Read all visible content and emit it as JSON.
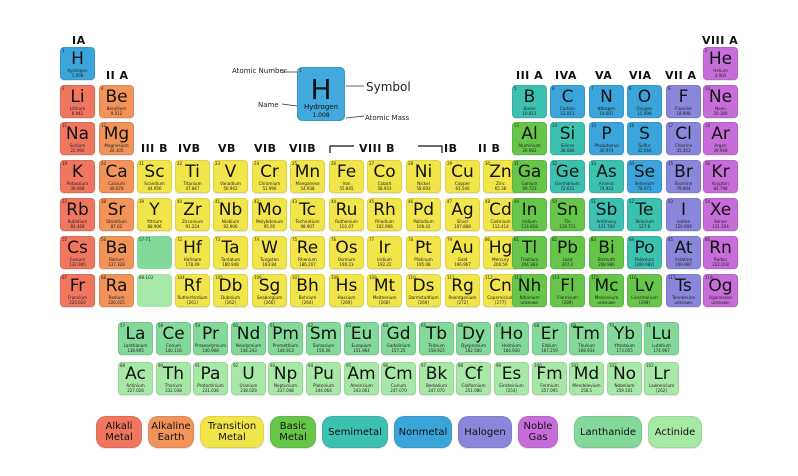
{
  "colors": {
    "alkali": "#f0765f",
    "alkaline": "#f2935a",
    "transition": "#f2e54a",
    "basic": "#66c64a",
    "semimetal": "#3cc0b0",
    "nonmetal": "#3ba4da",
    "halogen": "#8a86da",
    "noble": "#c76dd9",
    "lanthanide": "#83d99a",
    "actinide": "#a8e8a6",
    "hydrogen": "#3ba4da"
  },
  "group_labels": [
    "IA",
    "II A",
    "III B",
    "IVB",
    "VB",
    "VIB",
    "VIIB",
    "VIII B",
    "IB",
    "II B",
    "III A",
    "IVA",
    "VA",
    "VIA",
    "VII A",
    "VIII A"
  ],
  "key": {
    "atomic_number_label": "Atomic Number",
    "name_label": "Name",
    "symbol_label": "Symbol",
    "atomic_mass_label": "Atomic Mass",
    "symbol": "H",
    "name": "Hydrogen",
    "mass": "1.008",
    "number": "1"
  },
  "main_elements": [
    {
      "n": "1",
      "s": "H",
      "name": "Hydrogen",
      "m": "1.008",
      "r": 0,
      "c": 0,
      "t": "hydrogen"
    },
    {
      "n": "2",
      "s": "He",
      "name": "Helium",
      "m": "4.003",
      "r": 0,
      "c": 17,
      "t": "noble"
    },
    {
      "n": "3",
      "s": "Li",
      "name": "Lithium",
      "m": "6.941",
      "r": 1,
      "c": 0,
      "t": "alkali"
    },
    {
      "n": "4",
      "s": "Be",
      "name": "Beryllium",
      "m": "9.012",
      "r": 1,
      "c": 1,
      "t": "alkaline"
    },
    {
      "n": "5",
      "s": "B",
      "name": "Boron",
      "m": "10.811",
      "r": 1,
      "c": 12,
      "t": "semimetal"
    },
    {
      "n": "6",
      "s": "C",
      "name": "Carbon",
      "m": "12.011",
      "r": 1,
      "c": 13,
      "t": "nonmetal"
    },
    {
      "n": "7",
      "s": "N",
      "name": "Nitrogen",
      "m": "14.007",
      "r": 1,
      "c": 14,
      "t": "nonmetal"
    },
    {
      "n": "8",
      "s": "O",
      "name": "Oxygen",
      "m": "15.999",
      "r": 1,
      "c": 15,
      "t": "nonmetal"
    },
    {
      "n": "9",
      "s": "F",
      "name": "Fluorine",
      "m": "18.998",
      "r": 1,
      "c": 16,
      "t": "halogen"
    },
    {
      "n": "10",
      "s": "Ne",
      "name": "Neon",
      "m": "20.180",
      "r": 1,
      "c": 17,
      "t": "noble"
    },
    {
      "n": "11",
      "s": "Na",
      "name": "Sodium",
      "m": "22.990",
      "r": 2,
      "c": 0,
      "t": "alkali"
    },
    {
      "n": "12",
      "s": "Mg",
      "name": "Magnesium",
      "m": "24.305",
      "r": 2,
      "c": 1,
      "t": "alkaline"
    },
    {
      "n": "13",
      "s": "Al",
      "name": "Aluminium",
      "m": "26.982",
      "r": 2,
      "c": 12,
      "t": "basic"
    },
    {
      "n": "14",
      "s": "Si",
      "name": "Silicon",
      "m": "28.086",
      "r": 2,
      "c": 13,
      "t": "semimetal"
    },
    {
      "n": "15",
      "s": "P",
      "name": "Phosphorus",
      "m": "30.974",
      "r": 2,
      "c": 14,
      "t": "nonmetal"
    },
    {
      "n": "16",
      "s": "S",
      "name": "Sulfur",
      "m": "32.066",
      "r": 2,
      "c": 15,
      "t": "nonmetal"
    },
    {
      "n": "17",
      "s": "Cl",
      "name": "Chlorine",
      "m": "35.453",
      "r": 2,
      "c": 16,
      "t": "halogen"
    },
    {
      "n": "18",
      "s": "Ar",
      "name": "Argon",
      "m": "39.948",
      "r": 2,
      "c": 17,
      "t": "noble"
    },
    {
      "n": "19",
      "s": "K",
      "name": "Potassium",
      "m": "39.098",
      "r": 3,
      "c": 0,
      "t": "alkali"
    },
    {
      "n": "20",
      "s": "Ca",
      "name": "Calcium",
      "m": "40.078",
      "r": 3,
      "c": 1,
      "t": "alkaline"
    },
    {
      "n": "21",
      "s": "Sc",
      "name": "Scandium",
      "m": "44.956",
      "r": 3,
      "c": 2,
      "t": "transition"
    },
    {
      "n": "22",
      "s": "Ti",
      "name": "Titanium",
      "m": "47.867",
      "r": 3,
      "c": 3,
      "t": "transition"
    },
    {
      "n": "23",
      "s": "V",
      "name": "Vanadium",
      "m": "50.942",
      "r": 3,
      "c": 4,
      "t": "transition"
    },
    {
      "n": "24",
      "s": "Cr",
      "name": "Chromium",
      "m": "51.996",
      "r": 3,
      "c": 5,
      "t": "transition"
    },
    {
      "n": "25",
      "s": "Mn",
      "name": "Manganese",
      "m": "54.938",
      "r": 3,
      "c": 6,
      "t": "transition"
    },
    {
      "n": "26",
      "s": "Fe",
      "name": "Iron",
      "m": "55.845",
      "r": 3,
      "c": 7,
      "t": "transition"
    },
    {
      "n": "27",
      "s": "Co",
      "name": "Cobalt",
      "m": "58.933",
      "r": 3,
      "c": 8,
      "t": "transition"
    },
    {
      "n": "28",
      "s": "Ni",
      "name": "Nickel",
      "m": "58.693",
      "r": 3,
      "c": 9,
      "t": "transition"
    },
    {
      "n": "29",
      "s": "Cu",
      "name": "Copper",
      "m": "63.546",
      "r": 3,
      "c": 10,
      "t": "transition"
    },
    {
      "n": "30",
      "s": "Zn",
      "name": "Zinc",
      "m": "65.38",
      "r": 3,
      "c": 11,
      "t": "transition"
    },
    {
      "n": "31",
      "s": "Ga",
      "name": "Gallium",
      "m": "69.723",
      "r": 3,
      "c": 12,
      "t": "basic"
    },
    {
      "n": "32",
      "s": "Ge",
      "name": "Germanium",
      "m": "72.631",
      "r": 3,
      "c": 13,
      "t": "semimetal"
    },
    {
      "n": "33",
      "s": "As",
      "name": "Arsenic",
      "m": "74.922",
      "r": 3,
      "c": 14,
      "t": "semimetal"
    },
    {
      "n": "34",
      "s": "Se",
      "name": "Selenium",
      "m": "78.971",
      "r": 3,
      "c": 15,
      "t": "nonmetal"
    },
    {
      "n": "35",
      "s": "Br",
      "name": "Bromine",
      "m": "79.904",
      "r": 3,
      "c": 16,
      "t": "halogen"
    },
    {
      "n": "36",
      "s": "Kr",
      "name": "Krypton",
      "m": "84.798",
      "r": 3,
      "c": 17,
      "t": "noble"
    },
    {
      "n": "37",
      "s": "Rb",
      "name": "Rubidium",
      "m": "84.468",
      "r": 4,
      "c": 0,
      "t": "alkali"
    },
    {
      "n": "38",
      "s": "Sr",
      "name": "Strontium",
      "m": "87.62",
      "r": 4,
      "c": 1,
      "t": "alkaline"
    },
    {
      "n": "39",
      "s": "Y",
      "name": "Yttrium",
      "m": "88.906",
      "r": 4,
      "c": 2,
      "t": "transition"
    },
    {
      "n": "40",
      "s": "Zr",
      "name": "Zirconium",
      "m": "91.224",
      "r": 4,
      "c": 3,
      "t": "transition"
    },
    {
      "n": "41",
      "s": "Nb",
      "name": "Niobium",
      "m": "92.906",
      "r": 4,
      "c": 4,
      "t": "transition"
    },
    {
      "n": "42",
      "s": "Mo",
      "name": "Molybdenum",
      "m": "95.95",
      "r": 4,
      "c": 5,
      "t": "transition"
    },
    {
      "n": "43",
      "s": "Tc",
      "name": "Technetium",
      "m": "98.907",
      "r": 4,
      "c": 6,
      "t": "transition"
    },
    {
      "n": "44",
      "s": "Ru",
      "name": "Ruthenium",
      "m": "101.07",
      "r": 4,
      "c": 7,
      "t": "transition"
    },
    {
      "n": "45",
      "s": "Rh",
      "name": "Rhodium",
      "m": "102.906",
      "r": 4,
      "c": 8,
      "t": "transition"
    },
    {
      "n": "46",
      "s": "Pd",
      "name": "Palladium",
      "m": "106.42",
      "r": 4,
      "c": 9,
      "t": "transition"
    },
    {
      "n": "47",
      "s": "Ag",
      "name": "Silver",
      "m": "107.868",
      "r": 4,
      "c": 10,
      "t": "transition"
    },
    {
      "n": "48",
      "s": "Cd",
      "name": "Cadmium",
      "m": "112.414",
      "r": 4,
      "c": 11,
      "t": "transition"
    },
    {
      "n": "49",
      "s": "In",
      "name": "Indium",
      "m": "114.818",
      "r": 4,
      "c": 12,
      "t": "basic"
    },
    {
      "n": "50",
      "s": "Sn",
      "name": "Tin",
      "m": "118.711",
      "r": 4,
      "c": 13,
      "t": "basic"
    },
    {
      "n": "51",
      "s": "Sb",
      "name": "Antimony",
      "m": "121.760",
      "r": 4,
      "c": 14,
      "t": "semimetal"
    },
    {
      "n": "52",
      "s": "Te",
      "name": "Tellurium",
      "m": "127.6",
      "r": 4,
      "c": 15,
      "t": "semimetal"
    },
    {
      "n": "53",
      "s": "I",
      "name": "Iodine",
      "m": "126.904",
      "r": 4,
      "c": 16,
      "t": "halogen"
    },
    {
      "n": "54",
      "s": "Xe",
      "name": "Xenon",
      "m": "131.294",
      "r": 4,
      "c": 17,
      "t": "noble"
    },
    {
      "n": "55",
      "s": "Cs",
      "name": "Cesium",
      "m": "132.905",
      "r": 5,
      "c": 0,
      "t": "alkali"
    },
    {
      "n": "56",
      "s": "Ba",
      "name": "Barium",
      "m": "137.328",
      "r": 5,
      "c": 1,
      "t": "alkaline"
    },
    {
      "n": "72",
      "s": "Hf",
      "name": "Hafnium",
      "m": "178.49",
      "r": 5,
      "c": 3,
      "t": "transition"
    },
    {
      "n": "73",
      "s": "Ta",
      "name": "Tantalum",
      "m": "180.948",
      "r": 5,
      "c": 4,
      "t": "transition"
    },
    {
      "n": "74",
      "s": "W",
      "name": "Tungsten",
      "m": "183.84",
      "r": 5,
      "c": 5,
      "t": "transition"
    },
    {
      "n": "75",
      "s": "Re",
      "name": "Rhenium",
      "m": "186.207",
      "r": 5,
      "c": 6,
      "t": "transition"
    },
    {
      "n": "76",
      "s": "Os",
      "name": "Osmium",
      "m": "190.23",
      "r": 5,
      "c": 7,
      "t": "transition"
    },
    {
      "n": "77",
      "s": "Ir",
      "name": "Iridium",
      "m": "192.22",
      "r": 5,
      "c": 8,
      "t": "transition"
    },
    {
      "n": "78",
      "s": "Pt",
      "name": "Platinum",
      "m": "195.08",
      "r": 5,
      "c": 9,
      "t": "transition"
    },
    {
      "n": "79",
      "s": "Au",
      "name": "Gold",
      "m": "196.967",
      "r": 5,
      "c": 10,
      "t": "transition"
    },
    {
      "n": "80",
      "s": "Hg",
      "name": "Mercury",
      "m": "200.59",
      "r": 5,
      "c": 11,
      "t": "transition"
    },
    {
      "n": "81",
      "s": "Tl",
      "name": "Thallium",
      "m": "204.383",
      "r": 5,
      "c": 12,
      "t": "basic"
    },
    {
      "n": "82",
      "s": "Pb",
      "name": "Lead",
      "m": "207.2",
      "r": 5,
      "c": 13,
      "t": "basic"
    },
    {
      "n": "83",
      "s": "Bi",
      "name": "Bismuth",
      "m": "208.980",
      "r": 5,
      "c": 14,
      "t": "basic"
    },
    {
      "n": "84",
      "s": "Po",
      "name": "Polonium",
      "m": "[208.982]",
      "r": 5,
      "c": 15,
      "t": "semimetal"
    },
    {
      "n": "85",
      "s": "At",
      "name": "Astatine",
      "m": "209.987",
      "r": 5,
      "c": 16,
      "t": "halogen"
    },
    {
      "n": "86",
      "s": "Rn",
      "name": "Radon",
      "m": "222.018",
      "r": 5,
      "c": 17,
      "t": "noble"
    },
    {
      "n": "87",
      "s": "Fr",
      "name": "Francium",
      "m": "223.020",
      "r": 6,
      "c": 0,
      "t": "alkali"
    },
    {
      "n": "88",
      "s": "Ra",
      "name": "Radium",
      "m": "226.025",
      "r": 6,
      "c": 1,
      "t": "alkaline"
    },
    {
      "n": "104",
      "s": "Rf",
      "name": "Rutherfordium",
      "m": "[261]",
      "r": 6,
      "c": 3,
      "t": "transition"
    },
    {
      "n": "105",
      "s": "Db",
      "name": "Dubnium",
      "m": "[262]",
      "r": 6,
      "c": 4,
      "t": "transition"
    },
    {
      "n": "106",
      "s": "Sg",
      "name": "Seaborgium",
      "m": "[266]",
      "r": 6,
      "c": 5,
      "t": "transition"
    },
    {
      "n": "107",
      "s": "Bh",
      "name": "Bohrium",
      "m": "[264]",
      "r": 6,
      "c": 6,
      "t": "transition"
    },
    {
      "n": "108",
      "s": "Hs",
      "name": "Hassium",
      "m": "[269]",
      "r": 6,
      "c": 7,
      "t": "transition"
    },
    {
      "n": "109",
      "s": "Mt",
      "name": "Meitnerium",
      "m": "[268]",
      "r": 6,
      "c": 8,
      "t": "transition"
    },
    {
      "n": "110",
      "s": "Ds",
      "name": "Darmstadtium",
      "m": "[269]",
      "r": 6,
      "c": 9,
      "t": "transition"
    },
    {
      "n": "111",
      "s": "Rg",
      "name": "Roentgenium",
      "m": "[272]",
      "r": 6,
      "c": 10,
      "t": "transition"
    },
    {
      "n": "112",
      "s": "Cn",
      "name": "Copernicium",
      "m": "[277]",
      "r": 6,
      "c": 11,
      "t": "transition"
    },
    {
      "n": "113",
      "s": "Nh",
      "name": "Nihonium",
      "m": "unknown",
      "r": 6,
      "c": 12,
      "t": "basic"
    },
    {
      "n": "114",
      "s": "Fl",
      "name": "Flerovium",
      "m": "[289]",
      "r": 6,
      "c": 13,
      "t": "basic"
    },
    {
      "n": "115",
      "s": "Mc",
      "name": "Moscovium",
      "m": "unknown",
      "r": 6,
      "c": 14,
      "t": "basic"
    },
    {
      "n": "116",
      "s": "Lv",
      "name": "Livermorium",
      "m": "[298]",
      "r": 6,
      "c": 15,
      "t": "basic"
    },
    {
      "n": "117",
      "s": "Ts",
      "name": "Tennessine",
      "m": "unknown",
      "r": 6,
      "c": 16,
      "t": "halogen"
    },
    {
      "n": "118",
      "s": "Og",
      "name": "Oganesson",
      "m": "unknown",
      "r": 6,
      "c": 17,
      "t": "noble"
    }
  ],
  "placeholders": [
    {
      "label": "57-71",
      "r": 5,
      "c": 2
    },
    {
      "label": "89-103",
      "r": 6,
      "c": 2
    }
  ],
  "lanthanides": [
    {
      "n": "57",
      "s": "La",
      "name": "Lanthanum",
      "m": "138.905"
    },
    {
      "n": "58",
      "s": "Ce",
      "name": "Cerium",
      "m": "140.116"
    },
    {
      "n": "59",
      "s": "Pr",
      "name": "Praseodymium",
      "m": "140.908"
    },
    {
      "n": "60",
      "s": "Nd",
      "name": "Neodymium",
      "m": "144.243"
    },
    {
      "n": "61",
      "s": "Pm",
      "name": "Promethium",
      "m": "144.913"
    },
    {
      "n": "62",
      "s": "Sm",
      "name": "Samarium",
      "m": "150.36"
    },
    {
      "n": "63",
      "s": "Eu",
      "name": "Europium",
      "m": "151.964"
    },
    {
      "n": "64",
      "s": "Gd",
      "name": "Gadolinium",
      "m": "157.25"
    },
    {
      "n": "65",
      "s": "Tb",
      "name": "Terbium",
      "m": "158.925"
    },
    {
      "n": "66",
      "s": "Dy",
      "name": "Dysprosium",
      "m": "162.500"
    },
    {
      "n": "67",
      "s": "Ho",
      "name": "Holmium",
      "m": "164.930"
    },
    {
      "n": "68",
      "s": "Er",
      "name": "Erbium",
      "m": "167.259"
    },
    {
      "n": "69",
      "s": "Tm",
      "name": "Thulium",
      "m": "168.934"
    },
    {
      "n": "70",
      "s": "Yb",
      "name": "Ytterbium",
      "m": "173.055"
    },
    {
      "n": "71",
      "s": "Lu",
      "name": "Lutetium",
      "m": "174.967"
    }
  ],
  "actinides": [
    {
      "n": "89",
      "s": "Ac",
      "name": "Actinium",
      "m": "227.028"
    },
    {
      "n": "90",
      "s": "Th",
      "name": "Thorium",
      "m": "232.038"
    },
    {
      "n": "91",
      "s": "Pa",
      "name": "Protactinium",
      "m": "231.036"
    },
    {
      "n": "92",
      "s": "U",
      "name": "Uranium",
      "m": "238.029"
    },
    {
      "n": "93",
      "s": "Np",
      "name": "Neptunium",
      "m": "237.048"
    },
    {
      "n": "94",
      "s": "Pu",
      "name": "Plutonium",
      "m": "244.064"
    },
    {
      "n": "95",
      "s": "Am",
      "name": "Americium",
      "m": "243.061"
    },
    {
      "n": "96",
      "s": "Cm",
      "name": "Curium",
      "m": "247.070"
    },
    {
      "n": "97",
      "s": "Bk",
      "name": "Berkelium",
      "m": "247.070"
    },
    {
      "n": "98",
      "s": "Cf",
      "name": "Californium",
      "m": "251.080"
    },
    {
      "n": "99",
      "s": "Es",
      "name": "Einsteinium",
      "m": "[254]"
    },
    {
      "n": "100",
      "s": "Fm",
      "name": "Fermium",
      "m": "257.095"
    },
    {
      "n": "101",
      "s": "Md",
      "name": "Mendelevium",
      "m": "258.1"
    },
    {
      "n": "102",
      "s": "No",
      "name": "Nobelium",
      "m": "259.101"
    },
    {
      "n": "103",
      "s": "Lr",
      "name": "Lawrencium",
      "m": "[262]"
    }
  ],
  "legend": [
    {
      "label": "Alkali Metal",
      "t": "alkali"
    },
    {
      "label": "Alkaline Earth",
      "t": "alkaline"
    },
    {
      "label": "Transition Metal",
      "t": "transition"
    },
    {
      "label": "Basic Metal",
      "t": "basic"
    },
    {
      "label": "Semimetal",
      "t": "semimetal"
    },
    {
      "label": "Nonmetal",
      "t": "nonmetal"
    },
    {
      "label": "Halogen",
      "t": "halogen"
    },
    {
      "label": "Noble Gas",
      "t": "noble"
    },
    {
      "label": "Lanthanide",
      "t": "lanthanide"
    },
    {
      "label": "Actinide",
      "t": "actinide"
    }
  ]
}
